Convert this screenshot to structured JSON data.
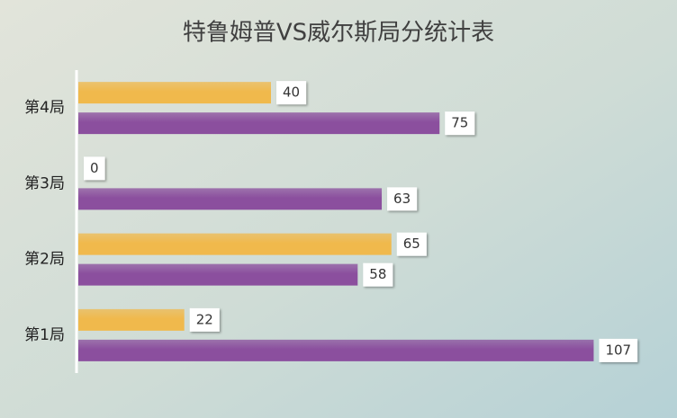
{
  "chart_data": {
    "type": "bar",
    "orientation": "horizontal",
    "title": "特鲁姆普VS威尔斯局分统计表",
    "categories": [
      "第1局",
      "第2局",
      "第3局",
      "第4局"
    ],
    "series": [
      {
        "color": "#f0b94c",
        "values": [
          22,
          65,
          0,
          40
        ]
      },
      {
        "color": "#8b4f9e",
        "values": [
          107,
          58,
          63,
          75
        ]
      }
    ],
    "xlim": [
      0,
      120
    ],
    "data_labels": true
  }
}
